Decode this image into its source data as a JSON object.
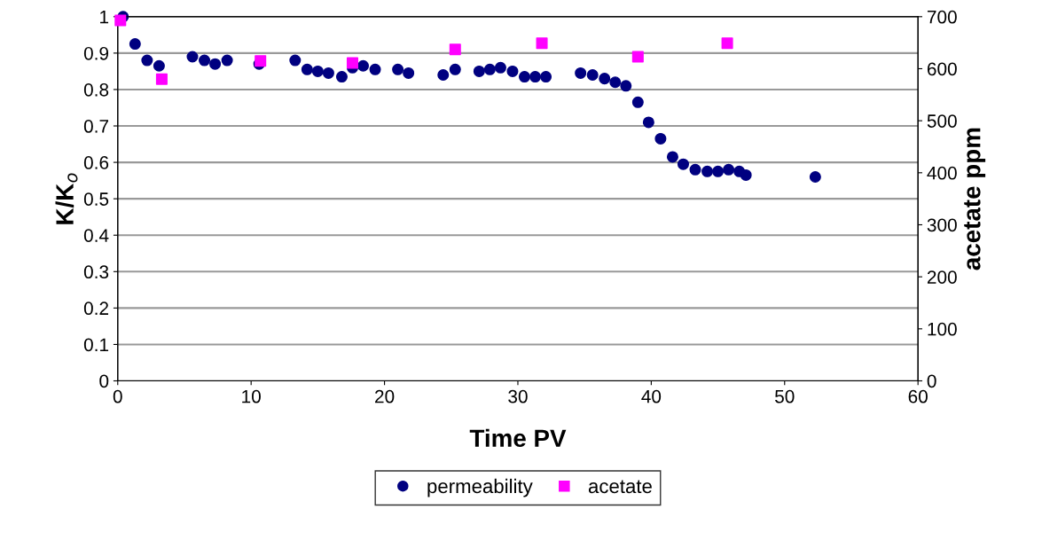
{
  "chart_data": {
    "type": "scatter",
    "xlabel": "Time PV",
    "ylabel": "K/K$_{o}$",
    "y2label": "acetate ppm",
    "xlim": [
      0,
      60
    ],
    "xticks": [
      0,
      10,
      20,
      30,
      40,
      50,
      60
    ],
    "ylim": [
      0,
      1
    ],
    "yticks": [
      0,
      0.1,
      0.2,
      0.3,
      0.4,
      0.5,
      0.6,
      0.7,
      0.8,
      0.9,
      1
    ],
    "y2lim": [
      0,
      700
    ],
    "y2ticks": [
      0,
      100,
      200,
      300,
      400,
      500,
      600,
      700
    ],
    "grid": "y",
    "legend": "bottom",
    "series": [
      {
        "name": "permeability",
        "color": "#000080",
        "marker": "circle",
        "x": [
          0.4,
          1.3,
          2.2,
          3.1,
          5.6,
          6.5,
          7.3,
          8.2,
          10.6,
          13.3,
          14.2,
          15.0,
          15.8,
          16.8,
          17.6,
          18.4,
          19.3,
          21.0,
          21.8,
          24.4,
          25.3,
          27.1,
          27.9,
          28.7,
          29.6,
          30.5,
          31.3,
          32.1,
          34.7,
          35.6,
          36.5,
          37.3,
          38.1,
          39.0,
          39.8,
          40.7,
          41.6,
          42.4,
          43.3,
          44.2,
          45.0,
          45.8,
          46.6,
          47.1,
          52.3
        ],
        "values": [
          1.0,
          0.925,
          0.88,
          0.865,
          0.89,
          0.88,
          0.87,
          0.88,
          0.87,
          0.88,
          0.855,
          0.85,
          0.845,
          0.835,
          0.86,
          0.865,
          0.855,
          0.855,
          0.845,
          0.84,
          0.855,
          0.85,
          0.855,
          0.86,
          0.85,
          0.835,
          0.835,
          0.835,
          0.845,
          0.84,
          0.83,
          0.82,
          0.81,
          0.765,
          0.71,
          0.665,
          0.615,
          0.595,
          0.58,
          0.575,
          0.575,
          0.58,
          0.575,
          0.565,
          0.56
        ]
      },
      {
        "name": "acetate",
        "color": "#ff00ff",
        "marker": "square",
        "axis": "y2",
        "x": [
          0.2,
          3.3,
          10.7,
          17.6,
          25.3,
          31.8,
          39.0,
          45.7
        ],
        "values": [
          693,
          580,
          615,
          611,
          637,
          649,
          623,
          649
        ]
      }
    ]
  }
}
